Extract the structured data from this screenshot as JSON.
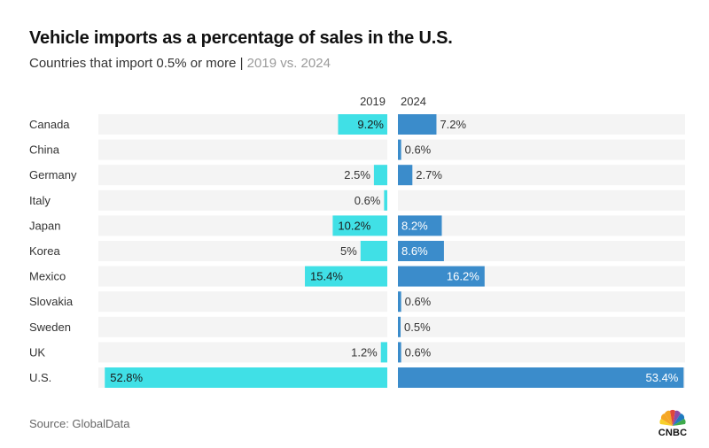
{
  "header": {
    "title": "Vehicle imports as a percentage of sales in the U.S.",
    "subtitle_main": "Countries that import 0.5% or more | ",
    "subtitle_muted": "2019 vs. 2024"
  },
  "footer": {
    "source": "Source: GlobalData",
    "logo_text": "CNBC"
  },
  "colors": {
    "series_2019": "#40E0E6",
    "series_2024": "#3B8CCB",
    "row_background": "#F4F4F4",
    "label_text": "#333333"
  },
  "chart_data": {
    "type": "bar",
    "title": "Vehicle imports as a percentage of sales in the U.S.",
    "subtitle": "Countries that import 0.5% or more | 2019 vs. 2024",
    "categories": [
      "Canada",
      "China",
      "Germany",
      "Italy",
      "Japan",
      "Korea",
      "Mexico",
      "Slovakia",
      "Sweden",
      "UK",
      "U.S."
    ],
    "series": [
      {
        "name": "2019",
        "values": [
          9.2,
          null,
          2.5,
          0.6,
          10.2,
          5,
          15.4,
          null,
          null,
          1.2,
          52.8
        ],
        "labels": [
          "9.2%",
          "",
          "2.5%",
          "0.6%",
          "10.2%",
          "5%",
          "15.4%",
          "",
          "",
          "1.2%",
          "52.8%"
        ]
      },
      {
        "name": "2024",
        "values": [
          7.2,
          0.6,
          2.7,
          null,
          8.2,
          8.6,
          16.2,
          0.6,
          0.5,
          0.6,
          53.4
        ],
        "labels": [
          "7.2%",
          "0.6%",
          "2.7%",
          "",
          "8.2%",
          "8.6%",
          "16.2%",
          "0.6%",
          "0.5%",
          "0.6%",
          "53.4%"
        ]
      }
    ],
    "xlim": [
      0,
      54
    ],
    "layout": "diverging back-to-back bars",
    "source": "Source: GlobalData"
  }
}
